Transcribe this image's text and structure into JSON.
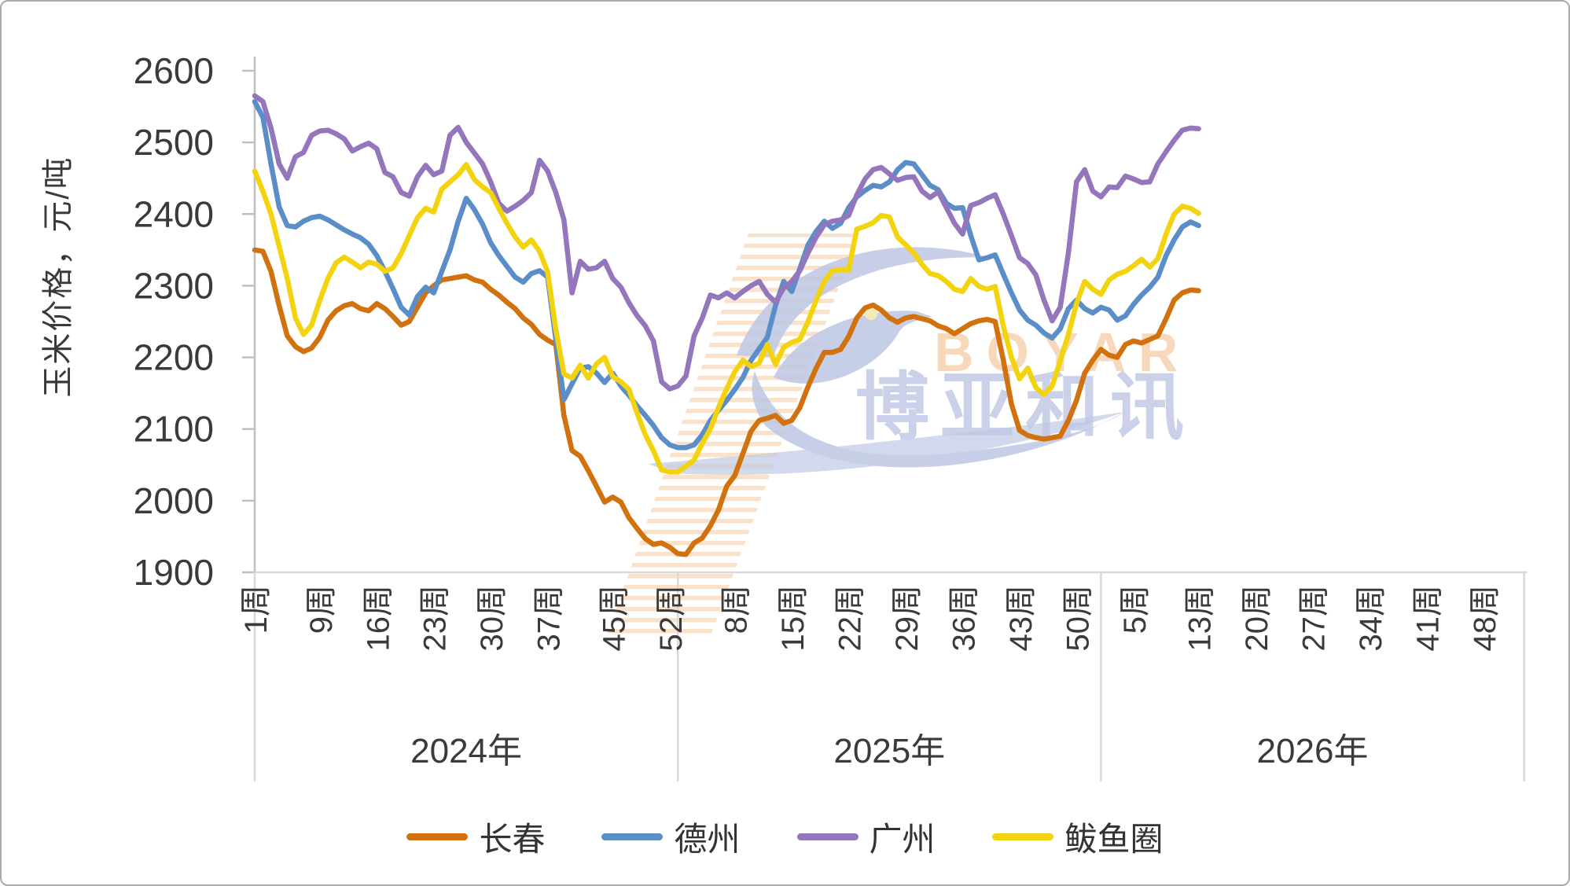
{
  "page": {
    "background": "#ffffff",
    "border_color": "#ababab"
  },
  "watermark": {
    "brand_latin": "BOYAR",
    "brand_cn": "博亚和讯",
    "latin_color": "#f5cda5",
    "cn_color": "#b7c0e0",
    "stripe_color": "#f6d4b4"
  },
  "chart_data": {
    "type": "line",
    "title": "",
    "xlabel": "",
    "ylabel": "玉米价格，元/吨",
    "ylim": [
      1900,
      2600
    ],
    "yticks": [
      1900,
      2000,
      2100,
      2200,
      2300,
      2400,
      2500,
      2600
    ],
    "grid": "off",
    "legend_position": "bottom",
    "axis_color": "#bfbfbf",
    "gridline_color": "#d9d9d9",
    "text_color": "#3a3a3a",
    "weeks_per_year": 52,
    "total_weeks": 156,
    "x_tick_labels": [
      {
        "label": "1周",
        "week": 1
      },
      {
        "label": "9周",
        "week": 9
      },
      {
        "label": "16周",
        "week": 16
      },
      {
        "label": "23周",
        "week": 23
      },
      {
        "label": "30周",
        "week": 30
      },
      {
        "label": "37周",
        "week": 37
      },
      {
        "label": "45周",
        "week": 45
      },
      {
        "label": "52周",
        "week": 52
      },
      {
        "label": "8周",
        "week": 60
      },
      {
        "label": "15周",
        "week": 67
      },
      {
        "label": "22周",
        "week": 74
      },
      {
        "label": "29周",
        "week": 81
      },
      {
        "label": "36周",
        "week": 88
      },
      {
        "label": "43周",
        "week": 95
      },
      {
        "label": "50周",
        "week": 102
      },
      {
        "label": "5周",
        "week": 109
      },
      {
        "label": "13周",
        "week": 117
      },
      {
        "label": "20周",
        "week": 124
      },
      {
        "label": "27周",
        "week": 131
      },
      {
        "label": "34周",
        "week": 138
      },
      {
        "label": "41周",
        "week": 145
      },
      {
        "label": "48周",
        "week": 152
      }
    ],
    "year_labels": [
      {
        "label": "2024年",
        "start_week": 1,
        "end_week": 52
      },
      {
        "label": "2025年",
        "start_week": 53,
        "end_week": 104
      },
      {
        "label": "2026年",
        "start_week": 105,
        "end_week": 156
      }
    ],
    "series": [
      {
        "name": "长春",
        "id": "changchun",
        "color": "#d2720f",
        "values": [
          2350,
          2348,
          2320,
          2272,
          2230,
          2215,
          2208,
          2213,
          2228,
          2252,
          2265,
          2272,
          2275,
          2268,
          2265,
          2275,
          2268,
          2257,
          2245,
          2250,
          2270,
          2290,
          2300,
          2308,
          2310,
          2312,
          2314,
          2308,
          2305,
          2295,
          2287,
          2277,
          2268,
          2255,
          2246,
          2232,
          2224,
          2218,
          2119,
          2070,
          2062,
          2042,
          2020,
          1998,
          2005,
          1998,
          1976,
          1961,
          1947,
          1939,
          1941,
          1935,
          1926,
          1925,
          1941,
          1948,
          1965,
          1987,
          2020,
          2035,
          2066,
          2097,
          2112,
          2115,
          2119,
          2108,
          2112,
          2130,
          2159,
          2185,
          2207,
          2207,
          2211,
          2229,
          2255,
          2269,
          2273,
          2266,
          2255,
          2249,
          2255,
          2257,
          2254,
          2251,
          2244,
          2240,
          2233,
          2240,
          2247,
          2251,
          2253,
          2250,
          2196,
          2135,
          2098,
          2091,
          2088,
          2086,
          2088,
          2090,
          2112,
          2140,
          2178,
          2196,
          2211,
          2203,
          2200,
          2218,
          2223,
          2220,
          2225,
          2230,
          2254,
          2280,
          2290,
          2294,
          2293
        ]
      },
      {
        "name": "德州",
        "id": "dezhou",
        "color": "#5b8dc8",
        "values": [
          2557,
          2535,
          2470,
          2410,
          2384,
          2382,
          2390,
          2395,
          2397,
          2392,
          2385,
          2378,
          2372,
          2367,
          2358,
          2342,
          2320,
          2296,
          2270,
          2259,
          2285,
          2298,
          2290,
          2320,
          2350,
          2390,
          2422,
          2406,
          2386,
          2360,
          2342,
          2327,
          2312,
          2305,
          2317,
          2321,
          2312,
          2225,
          2141,
          2163,
          2185,
          2187,
          2178,
          2165,
          2178,
          2160,
          2147,
          2132,
          2119,
          2105,
          2088,
          2078,
          2074,
          2074,
          2078,
          2092,
          2112,
          2126,
          2140,
          2155,
          2172,
          2196,
          2212,
          2228,
          2272,
          2306,
          2292,
          2324,
          2357,
          2376,
          2390,
          2380,
          2387,
          2409,
          2424,
          2433,
          2440,
          2438,
          2445,
          2462,
          2472,
          2470,
          2455,
          2440,
          2434,
          2415,
          2408,
          2409,
          2370,
          2336,
          2339,
          2343,
          2316,
          2290,
          2266,
          2252,
          2245,
          2234,
          2227,
          2240,
          2268,
          2280,
          2268,
          2262,
          2270,
          2266,
          2252,
          2258,
          2274,
          2287,
          2298,
          2312,
          2342,
          2364,
          2382,
          2389,
          2384
        ]
      },
      {
        "name": "广州",
        "id": "guangzhou",
        "color": "#9476bd",
        "values": [
          2565,
          2557,
          2520,
          2470,
          2450,
          2480,
          2486,
          2510,
          2516,
          2517,
          2512,
          2505,
          2488,
          2494,
          2499,
          2491,
          2458,
          2452,
          2430,
          2425,
          2452,
          2468,
          2455,
          2460,
          2510,
          2521,
          2500,
          2485,
          2470,
          2445,
          2415,
          2404,
          2411,
          2419,
          2430,
          2475,
          2460,
          2430,
          2392,
          2290,
          2334,
          2323,
          2325,
          2334,
          2310,
          2298,
          2276,
          2258,
          2244,
          2223,
          2166,
          2156,
          2160,
          2174,
          2230,
          2255,
          2287,
          2283,
          2290,
          2283,
          2292,
          2300,
          2306,
          2288,
          2277,
          2297,
          2306,
          2321,
          2346,
          2368,
          2385,
          2390,
          2392,
          2398,
          2427,
          2449,
          2462,
          2465,
          2456,
          2447,
          2451,
          2452,
          2432,
          2423,
          2431,
          2409,
          2387,
          2372,
          2412,
          2416,
          2422,
          2427,
          2400,
          2370,
          2339,
          2331,
          2315,
          2280,
          2251,
          2270,
          2346,
          2445,
          2462,
          2432,
          2424,
          2438,
          2437,
          2453,
          2449,
          2444,
          2445,
          2470,
          2487,
          2503,
          2517,
          2520,
          2519
        ]
      },
      {
        "name": "鲅鱼圈",
        "id": "bayuquan",
        "color": "#f2d30e",
        "values": [
          2460,
          2432,
          2400,
          2355,
          2310,
          2255,
          2232,
          2245,
          2280,
          2310,
          2332,
          2340,
          2333,
          2325,
          2333,
          2330,
          2320,
          2325,
          2345,
          2370,
          2395,
          2408,
          2403,
          2435,
          2445,
          2455,
          2469,
          2448,
          2438,
          2430,
          2408,
          2387,
          2368,
          2354,
          2364,
          2348,
          2319,
          2239,
          2177,
          2171,
          2189,
          2171,
          2191,
          2200,
          2173,
          2166,
          2155,
          2122,
          2092,
          2070,
          2043,
          2040,
          2040,
          2048,
          2057,
          2080,
          2100,
          2130,
          2156,
          2180,
          2196,
          2187,
          2192,
          2218,
          2190,
          2214,
          2221,
          2225,
          2250,
          2280,
          2306,
          2321,
          2322,
          2322,
          2379,
          2383,
          2388,
          2398,
          2396,
          2368,
          2357,
          2346,
          2330,
          2317,
          2314,
          2306,
          2295,
          2292,
          2310,
          2299,
          2295,
          2299,
          2244,
          2200,
          2170,
          2185,
          2158,
          2148,
          2160,
          2195,
          2232,
          2275,
          2306,
          2295,
          2288,
          2308,
          2316,
          2320,
          2328,
          2337,
          2326,
          2338,
          2372,
          2400,
          2411,
          2408,
          2401
        ]
      }
    ]
  }
}
